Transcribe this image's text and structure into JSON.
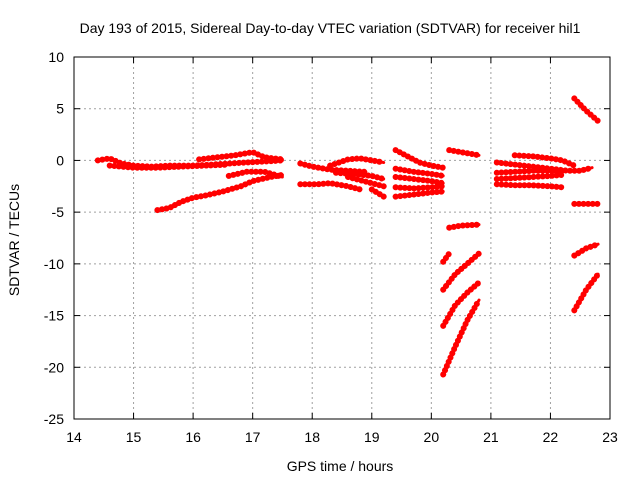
{
  "chart_data": {
    "type": "scatter",
    "title": "Day 193 of 2015, Sidereal Day-to-day VTEC variation (SDTVAR) for receiver hil1",
    "xlabel": "GPS time / hours",
    "ylabel": "SDTVAR / TECUs",
    "xlim": [
      14,
      23
    ],
    "ylim": [
      -25,
      10
    ],
    "xticks": [
      "14",
      "15",
      "16",
      "17",
      "18",
      "19",
      "20",
      "21",
      "22",
      "23"
    ],
    "yticks": [
      "10",
      "5",
      "0",
      "-5",
      "-10",
      "-15",
      "-20",
      "-25"
    ],
    "grid": true,
    "legend": "none",
    "marker": "plus",
    "color": "#ff0000",
    "series": [
      {
        "points": [
          [
            14.4,
            0.0
          ],
          [
            14.6,
            0.2
          ],
          [
            14.8,
            -0.3
          ],
          [
            15.0,
            -0.5
          ],
          [
            15.3,
            -0.6
          ],
          [
            15.6,
            -0.5
          ],
          [
            16.0,
            -0.5
          ],
          [
            16.3,
            -0.4
          ],
          [
            16.6,
            -0.3
          ],
          [
            16.9,
            -0.2
          ],
          [
            17.2,
            -0.1
          ],
          [
            17.5,
            0.0
          ]
        ]
      },
      {
        "points": [
          [
            14.6,
            -0.5
          ],
          [
            15.0,
            -0.7
          ],
          [
            15.4,
            -0.7
          ],
          [
            15.8,
            -0.6
          ],
          [
            16.2,
            -0.5
          ],
          [
            16.6,
            -0.4
          ]
        ]
      },
      {
        "points": [
          [
            16.1,
            0.1
          ],
          [
            16.4,
            0.3
          ],
          [
            16.7,
            0.5
          ],
          [
            16.9,
            0.7
          ],
          [
            17.0,
            0.8
          ],
          [
            17.2,
            0.3
          ],
          [
            17.5,
            0.1
          ]
        ]
      },
      {
        "points": [
          [
            15.4,
            -4.8
          ],
          [
            15.6,
            -4.6
          ],
          [
            15.8,
            -4.0
          ],
          [
            16.0,
            -3.6
          ],
          [
            16.2,
            -3.4
          ],
          [
            16.5,
            -3.0
          ],
          [
            16.8,
            -2.5
          ],
          [
            17.0,
            -2.0
          ],
          [
            17.3,
            -1.6
          ],
          [
            17.5,
            -1.4
          ]
        ]
      },
      {
        "points": [
          [
            16.6,
            -1.5
          ],
          [
            16.9,
            -1.1
          ],
          [
            17.2,
            -1.1
          ],
          [
            17.5,
            -1.6
          ]
        ]
      },
      {
        "points": [
          [
            17.8,
            -0.3
          ],
          [
            18.0,
            -0.6
          ],
          [
            18.3,
            -0.9
          ],
          [
            18.6,
            -1.0
          ],
          [
            18.9,
            -1.1
          ]
        ]
      },
      {
        "points": [
          [
            18.3,
            -0.5
          ],
          [
            18.6,
            0.1
          ],
          [
            18.8,
            0.2
          ],
          [
            19.0,
            0.0
          ],
          [
            19.2,
            -0.2
          ]
        ]
      },
      {
        "points": [
          [
            17.8,
            -2.3
          ],
          [
            18.1,
            -2.3
          ],
          [
            18.3,
            -2.2
          ],
          [
            18.6,
            -2.5
          ],
          [
            18.8,
            -2.8
          ]
        ]
      },
      {
        "points": [
          [
            18.4,
            -1.2
          ],
          [
            18.7,
            -1.3
          ],
          [
            19.0,
            -1.5
          ],
          [
            19.2,
            -1.8
          ]
        ]
      },
      {
        "points": [
          [
            18.6,
            -1.6
          ],
          [
            18.8,
            -1.9
          ],
          [
            19.0,
            -2.2
          ],
          [
            19.2,
            -2.5
          ]
        ]
      },
      {
        "points": [
          [
            19.0,
            -2.8
          ],
          [
            19.2,
            -3.5
          ]
        ]
      },
      {
        "points": [
          [
            19.4,
            1.0
          ],
          [
            19.6,
            0.4
          ],
          [
            19.8,
            -0.2
          ],
          [
            20.0,
            -0.5
          ],
          [
            20.2,
            -0.7
          ]
        ]
      },
      {
        "points": [
          [
            19.4,
            -0.8
          ],
          [
            19.7,
            -1.1
          ],
          [
            20.0,
            -1.3
          ],
          [
            20.2,
            -1.5
          ]
        ]
      },
      {
        "points": [
          [
            19.4,
            -1.6
          ],
          [
            19.7,
            -1.8
          ],
          [
            20.0,
            -2.0
          ],
          [
            20.2,
            -2.2
          ]
        ]
      },
      {
        "points": [
          [
            19.4,
            -2.6
          ],
          [
            19.7,
            -2.7
          ],
          [
            20.0,
            -2.6
          ],
          [
            20.2,
            -2.5
          ]
        ]
      },
      {
        "points": [
          [
            19.4,
            -3.5
          ],
          [
            19.7,
            -3.3
          ],
          [
            20.0,
            -3.1
          ],
          [
            20.2,
            -3.0
          ]
        ]
      },
      {
        "points": [
          [
            20.3,
            1.0
          ],
          [
            20.5,
            0.8
          ],
          [
            20.7,
            0.6
          ],
          [
            20.8,
            0.5
          ]
        ]
      },
      {
        "points": [
          [
            20.3,
            -6.5
          ],
          [
            20.5,
            -6.3
          ],
          [
            20.8,
            -6.2
          ]
        ]
      },
      {
        "points": [
          [
            20.2,
            -9.8
          ],
          [
            20.3,
            -9.0
          ]
        ]
      },
      {
        "points": [
          [
            20.2,
            -12.5
          ],
          [
            20.4,
            -11.0
          ],
          [
            20.6,
            -10.0
          ],
          [
            20.8,
            -9.0
          ]
        ]
      },
      {
        "points": [
          [
            20.2,
            -16.0
          ],
          [
            20.4,
            -14.0
          ],
          [
            20.6,
            -12.8
          ],
          [
            20.8,
            -11.8
          ]
        ]
      },
      {
        "points": [
          [
            20.2,
            -20.7
          ],
          [
            20.4,
            -18.0
          ],
          [
            20.6,
            -15.5
          ],
          [
            20.8,
            -13.5
          ]
        ]
      },
      {
        "points": [
          [
            21.1,
            -0.2
          ],
          [
            21.4,
            -0.4
          ],
          [
            21.7,
            -0.6
          ],
          [
            22.0,
            -0.8
          ],
          [
            22.3,
            -1.0
          ],
          [
            22.5,
            -1.0
          ],
          [
            22.7,
            -0.7
          ]
        ]
      },
      {
        "points": [
          [
            21.1,
            -1.2
          ],
          [
            21.4,
            -1.1
          ],
          [
            21.7,
            -1.0
          ],
          [
            22.0,
            -1.0
          ],
          [
            22.2,
            -1.1
          ]
        ]
      },
      {
        "points": [
          [
            21.1,
            -1.8
          ],
          [
            21.4,
            -1.7
          ],
          [
            21.7,
            -1.6
          ],
          [
            22.0,
            -1.5
          ],
          [
            22.2,
            -1.4
          ]
        ]
      },
      {
        "points": [
          [
            21.1,
            -2.3
          ],
          [
            21.4,
            -2.4
          ],
          [
            21.7,
            -2.4
          ],
          [
            22.0,
            -2.5
          ],
          [
            22.2,
            -2.6
          ]
        ]
      },
      {
        "points": [
          [
            21.4,
            0.5
          ],
          [
            21.7,
            0.4
          ],
          [
            22.0,
            0.2
          ],
          [
            22.2,
            0.0
          ],
          [
            22.4,
            -0.5
          ]
        ]
      },
      {
        "points": [
          [
            22.4,
            6.0
          ],
          [
            22.6,
            4.8
          ],
          [
            22.8,
            3.8
          ]
        ]
      },
      {
        "points": [
          [
            22.4,
            -4.2
          ],
          [
            22.6,
            -4.2
          ],
          [
            22.8,
            -4.2
          ]
        ]
      },
      {
        "points": [
          [
            22.4,
            -9.2
          ],
          [
            22.6,
            -8.5
          ],
          [
            22.8,
            -8.1
          ]
        ]
      },
      {
        "points": [
          [
            22.4,
            -14.5
          ],
          [
            22.6,
            -12.5
          ],
          [
            22.8,
            -11.0
          ]
        ]
      }
    ]
  }
}
